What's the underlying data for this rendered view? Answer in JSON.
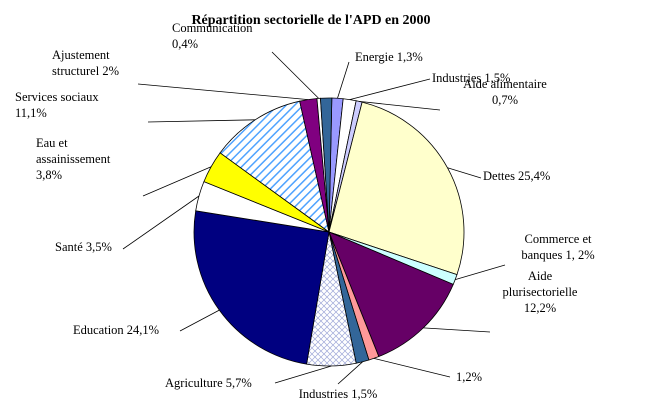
{
  "chart_data": {
    "type": "pie",
    "title": "Répartition sectorielle de l'APD en 2000",
    "slices": [
      {
        "name": "Energie",
        "value": 1.3,
        "label": [
          "Energie 1,3%"
        ],
        "fill": "#9999ff"
      },
      {
        "name": "Industries",
        "value": 1.5,
        "label": [
          "Industries 1,5%"
        ],
        "fill": "#ffffff"
      },
      {
        "name": "Aide alimentaire",
        "value": 0.7,
        "label": [
          "Aide alimentaire",
          "0,7%"
        ],
        "fill": "#ccccff"
      },
      {
        "name": "Dettes",
        "value": 25.4,
        "label": [
          "Dettes 25,4%"
        ],
        "fill": "#ffffcc"
      },
      {
        "name": "Commerce et banques",
        "value": 1.2,
        "label": [
          "Commerce et",
          "banques 1, 2%"
        ],
        "fill": "#ccffff"
      },
      {
        "name": "Aide plurisectorielle",
        "value": 12.2,
        "label": [
          "Aide",
          "plurisectorielle",
          "12,2%"
        ],
        "fill": "#660066"
      },
      {
        "name": "",
        "value": 1.2,
        "label": [
          "1,2%"
        ],
        "fill": "#ff9999"
      },
      {
        "name": "Industries",
        "value": 1.5,
        "label": [
          "Industries 1,5%"
        ],
        "fill": "#336699"
      },
      {
        "name": "Agriculture",
        "value": 5.7,
        "label": [
          "Agriculture 5,7%"
        ],
        "fill": "pattern-crosshatch"
      },
      {
        "name": "Education",
        "value": 24.1,
        "label": [
          "Education 24,1%"
        ],
        "fill": "#000080"
      },
      {
        "name": "Santé",
        "value": 3.5,
        "label": [
          "Santé 3,5%"
        ],
        "fill": "#ffffff"
      },
      {
        "name": "Eau et assainissement",
        "value": 3.8,
        "label": [
          "Eau et",
          "assainissement",
          "3,8%"
        ],
        "fill": "#ffff00"
      },
      {
        "name": "Services sociaux",
        "value": 11.1,
        "label": [
          "Services sociaux",
          "11,1%"
        ],
        "fill": "pattern-diagonal"
      },
      {
        "name": "Ajustement structurel",
        "value": 2.0,
        "label": [
          "Ajustement",
          "structurel 2%"
        ],
        "fill": "#800080"
      },
      {
        "name": "Communication",
        "value": 0.4,
        "label": [
          "Communication",
          "0,4%"
        ],
        "fill": "#ffffff"
      },
      {
        "name": "",
        "value": 1.3,
        "label": [],
        "fill": "#336699"
      }
    ]
  }
}
